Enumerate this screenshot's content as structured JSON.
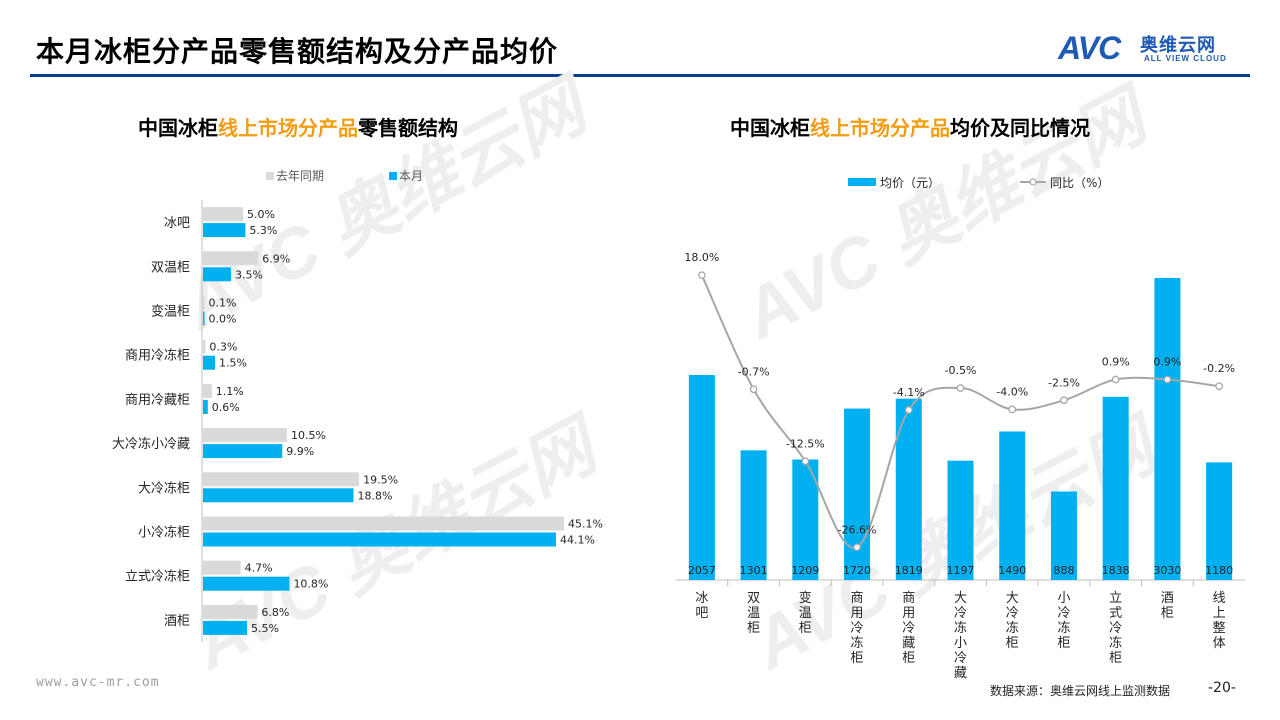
{
  "header": {
    "title": "本月冰柜分产品零售额结构及分产品均价",
    "logo_mark": "AVC",
    "logo_cn": "奥维云网",
    "logo_en": "ALL VIEW CLOUD"
  },
  "left_chart": {
    "title_pre": "中国冰柜",
    "title_hl": "线上市场分产品",
    "title_post": "零售额结构"
  },
  "right_chart": {
    "title_pre": "中国冰柜",
    "title_hl": "线上市场分产品",
    "title_post": "均价及同比情况"
  },
  "footer": {
    "url": "www.avc-mr.com",
    "source": "数据来源：奥维云网线上监测数据",
    "page": "-20-"
  },
  "colors": {
    "accent_blue": "#00b0f0",
    "last_year_gray": "#d9d9d9",
    "yoy_line_gray": "#a6a6a6",
    "highlight_orange": "#f39c12",
    "brand_blue": "#0a3d91"
  },
  "chart_data": [
    {
      "type": "bar",
      "orientation": "horizontal",
      "categories": [
        "冰吧",
        "双温柜",
        "变温柜",
        "商用冷冻柜",
        "商用冷藏柜",
        "大冷冻小冷藏",
        "大冷冻柜",
        "小冷冻柜",
        "立式冷冻柜",
        "酒柜"
      ],
      "series": [
        {
          "name": "去年同期",
          "values": [
            5.0,
            6.9,
            0.1,
            0.3,
            1.1,
            10.5,
            19.5,
            45.1,
            4.7,
            6.8
          ],
          "labels": [
            "5.0%",
            "6.9%",
            "0.1%",
            "0.3%",
            "1.1%",
            "10.5%",
            "19.5%",
            "45.1%",
            "4.7%",
            "6.8%"
          ]
        },
        {
          "name": "本月",
          "values": [
            5.3,
            3.5,
            0.0,
            1.5,
            0.6,
            9.9,
            18.8,
            44.1,
            10.8,
            5.5
          ],
          "labels": [
            "5.3%",
            "3.5%",
            "0.0%",
            "1.5%",
            "0.6%",
            "9.9%",
            "18.8%",
            "44.1%",
            "10.8%",
            "5.5%"
          ]
        }
      ],
      "xlim": [
        0,
        50
      ],
      "legend": "top",
      "grid": false
    },
    {
      "type": "bar",
      "categories": [
        "冰吧",
        "双温柜",
        "变温柜",
        "商用冷冻柜",
        "商用冷藏柜",
        "大冷冻小冷藏",
        "大冷冻柜",
        "小冷冻柜",
        "立式冷冻柜",
        "酒柜",
        "线上整体"
      ],
      "series": [
        {
          "name": "均价（元）",
          "type": "bar",
          "values": [
            2057,
            1301,
            1209,
            1720,
            1819,
            1197,
            1490,
            888,
            1838,
            3030,
            1180
          ],
          "labels": [
            "2057",
            "1301",
            "1209",
            "1720",
            "1819",
            "1197",
            "1490",
            "888",
            "1838",
            "3030",
            "1180"
          ]
        },
        {
          "name": "同比（%）",
          "type": "line",
          "values": [
            18.0,
            -0.7,
            -12.5,
            -26.6,
            -4.1,
            -0.5,
            -4.0,
            -2.5,
            0.9,
            0.9,
            -0.2
          ],
          "labels": [
            "18.0%",
            "-0.7%",
            "-12.5%",
            "-26.6%",
            "-4.1%",
            "-0.5%",
            "-4.0%",
            "-2.5%",
            "0.9%",
            "0.9%",
            "-0.2%"
          ]
        }
      ],
      "ylim_bar": [
        0,
        3300
      ],
      "ylim_line": [
        -30,
        20
      ],
      "legend": "top",
      "grid": false
    }
  ]
}
